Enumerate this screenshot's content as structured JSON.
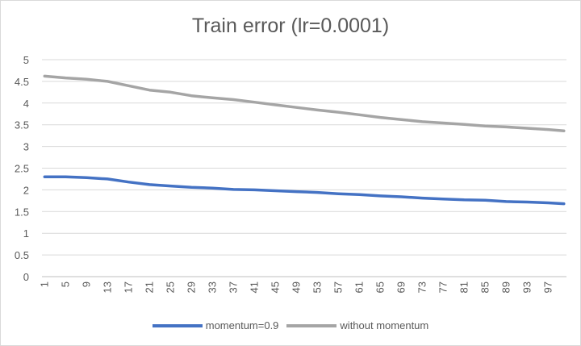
{
  "chart_data": {
    "type": "line",
    "title": "Train error (lr=0.0001)",
    "xlabel": "",
    "ylabel": "",
    "ylim": [
      0,
      5
    ],
    "yticks": [
      "0",
      "0.5",
      "1",
      "1.5",
      "2",
      "2.5",
      "3",
      "3.5",
      "4",
      "4.5",
      "5"
    ],
    "xticks": [
      "1",
      "5",
      "9",
      "13",
      "17",
      "21",
      "25",
      "29",
      "33",
      "37",
      "41",
      "45",
      "49",
      "53",
      "57",
      "61",
      "65",
      "69",
      "73",
      "77",
      "81",
      "85",
      "89",
      "93",
      "97"
    ],
    "x_range": [
      1,
      100
    ],
    "grid": "horizontal",
    "legend_position": "bottom",
    "series": [
      {
        "name": "momentum=0.9",
        "color": "#4472C4",
        "x": [
          1,
          5,
          9,
          13,
          17,
          21,
          25,
          29,
          33,
          37,
          41,
          45,
          49,
          53,
          57,
          61,
          65,
          69,
          73,
          77,
          81,
          85,
          89,
          93,
          97,
          100
        ],
        "values": [
          2.3,
          2.3,
          2.28,
          2.25,
          2.18,
          2.12,
          2.09,
          2.06,
          2.04,
          2.01,
          2.0,
          1.98,
          1.96,
          1.94,
          1.91,
          1.89,
          1.86,
          1.84,
          1.81,
          1.79,
          1.77,
          1.76,
          1.73,
          1.72,
          1.7,
          1.68
        ]
      },
      {
        "name": "without momentum",
        "color": "#A5A5A5",
        "x": [
          1,
          5,
          9,
          13,
          17,
          21,
          25,
          29,
          33,
          37,
          41,
          45,
          49,
          53,
          57,
          61,
          65,
          69,
          73,
          77,
          81,
          85,
          89,
          93,
          97,
          100
        ],
        "values": [
          4.62,
          4.58,
          4.55,
          4.5,
          4.4,
          4.3,
          4.25,
          4.17,
          4.12,
          4.08,
          4.02,
          3.96,
          3.9,
          3.84,
          3.79,
          3.73,
          3.67,
          3.62,
          3.57,
          3.54,
          3.51,
          3.47,
          3.45,
          3.42,
          3.39,
          3.36
        ]
      }
    ]
  }
}
